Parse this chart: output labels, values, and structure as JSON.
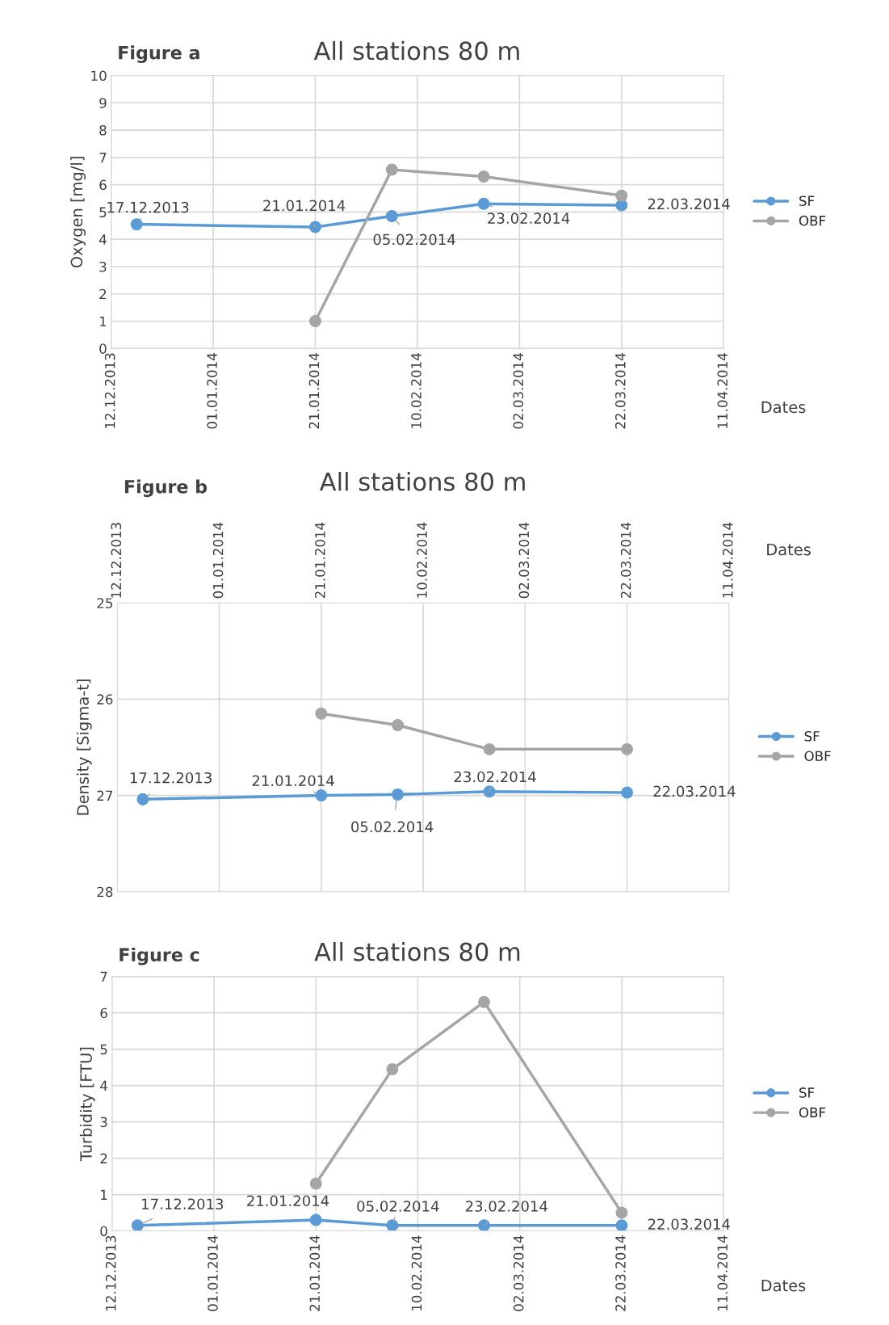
{
  "chart_data": [
    {
      "type": "line",
      "title": "All stations 80 m",
      "subtitle": "Figure a",
      "xlabel": "Dates",
      "ylabel": "Oxygen [mg/l]",
      "xlim": [
        "2013-12-12",
        "2014-04-11"
      ],
      "xticks": [
        {
          "value": "2013-12-12",
          "label": "12.12.2013"
        },
        {
          "value": "2014-01-01",
          "label": "01.01.2014"
        },
        {
          "value": "2014-01-21",
          "label": "21.01.2014"
        },
        {
          "value": "2014-02-10",
          "label": "10.02.2014"
        },
        {
          "value": "2014-03-02",
          "label": "02.03.2014"
        },
        {
          "value": "2014-03-22",
          "label": "22.03.2014"
        },
        {
          "value": "2014-04-11",
          "label": "11.04.2014"
        }
      ],
      "ylim": [
        0,
        10
      ],
      "yticks": [
        0,
        1,
        2,
        3,
        4,
        5,
        6,
        7,
        8,
        9,
        10
      ],
      "grid": true,
      "legend": "right",
      "marker": "circle",
      "line_style": "solid",
      "series": [
        {
          "name": "SF",
          "color": "#5b9bd5",
          "x": [
            "2013-12-17",
            "2014-01-21",
            "2014-02-05",
            "2014-02-23",
            "2014-03-22"
          ],
          "values": [
            4.55,
            4.45,
            4.85,
            5.3,
            5.25
          ]
        },
        {
          "name": "OBF",
          "color": "#a5a5a5",
          "x": [
            "2014-01-21",
            "2014-02-05",
            "2014-02-23",
            "2014-03-22"
          ],
          "values": [
            1.0,
            6.55,
            6.3,
            5.6
          ]
        }
      ],
      "annotations": [
        {
          "text": "17.12.2013",
          "x": "2013-12-17",
          "y": 4.55
        },
        {
          "text": "21.01.2014",
          "x": "2014-01-21",
          "y": 4.45
        },
        {
          "text": "05.02.2014",
          "x": "2014-02-05",
          "y": 4.85
        },
        {
          "text": "23.02.2014",
          "x": "2014-02-23",
          "y": 5.3
        },
        {
          "text": "22.03.2014",
          "x": "2014-03-22",
          "y": 5.25
        }
      ]
    },
    {
      "type": "line",
      "title": "All stations 80 m",
      "subtitle": "Figure b",
      "xlabel": "Dates",
      "ylabel": "Density [Sigma-t]",
      "xlim": [
        "2013-12-12",
        "2014-04-11"
      ],
      "xticks": [
        {
          "value": "2013-12-12",
          "label": "12.12.2013"
        },
        {
          "value": "2014-01-01",
          "label": "01.01.2014"
        },
        {
          "value": "2014-01-21",
          "label": "21.01.2014"
        },
        {
          "value": "2014-02-10",
          "label": "10.02.2014"
        },
        {
          "value": "2014-03-02",
          "label": "02.03.2014"
        },
        {
          "value": "2014-03-22",
          "label": "22.03.2014"
        },
        {
          "value": "2014-04-11",
          "label": "11.04.2014"
        }
      ],
      "ylim": [
        28,
        25
      ],
      "yticks": [
        25,
        26,
        27,
        28
      ],
      "grid": true,
      "legend": "right",
      "marker": "circle",
      "line_style": "solid",
      "series": [
        {
          "name": "SF",
          "color": "#5b9bd5",
          "x": [
            "2013-12-17",
            "2014-01-21",
            "2014-02-05",
            "2014-02-23",
            "2014-03-22"
          ],
          "values": [
            27.04,
            27.0,
            26.99,
            26.96,
            26.97
          ]
        },
        {
          "name": "OBF",
          "color": "#a5a5a5",
          "x": [
            "2014-01-21",
            "2014-02-05",
            "2014-02-23",
            "2014-03-22"
          ],
          "values": [
            26.15,
            26.27,
            26.52,
            26.52
          ]
        }
      ],
      "annotations": [
        {
          "text": "17.12.2013",
          "x": "2013-12-17",
          "y": 27.04
        },
        {
          "text": "21.01.2014",
          "x": "2014-01-21",
          "y": 27.0
        },
        {
          "text": "05.02.2014",
          "x": "2014-02-05",
          "y": 26.99
        },
        {
          "text": "23.02.2014",
          "x": "2014-02-23",
          "y": 26.96
        },
        {
          "text": "22.03.2014",
          "x": "2014-03-22",
          "y": 26.97
        }
      ]
    },
    {
      "type": "line",
      "title": "All stations 80 m",
      "subtitle": "Figure c",
      "xlabel": "Dates",
      "ylabel": "Turbidity [FTU]",
      "xlim": [
        "2013-12-12",
        "2014-04-11"
      ],
      "xticks": [
        {
          "value": "2013-12-12",
          "label": "12.12.2013"
        },
        {
          "value": "2014-01-01",
          "label": "01.01.2014"
        },
        {
          "value": "2014-01-21",
          "label": "21.01.2014"
        },
        {
          "value": "2014-02-10",
          "label": "10.02.2014"
        },
        {
          "value": "2014-03-02",
          "label": "02.03.2014"
        },
        {
          "value": "2014-03-22",
          "label": "22.03.2014"
        },
        {
          "value": "2014-04-11",
          "label": "11.04.2014"
        }
      ],
      "ylim": [
        0,
        7
      ],
      "yticks": [
        0,
        1,
        2,
        3,
        4,
        5,
        6,
        7
      ],
      "grid": true,
      "legend": "right",
      "marker": "circle",
      "line_style": "solid",
      "series": [
        {
          "name": "SF",
          "color": "#5b9bd5",
          "x": [
            "2013-12-17",
            "2014-01-21",
            "2014-02-05",
            "2014-02-23",
            "2014-03-22"
          ],
          "values": [
            0.15,
            0.3,
            0.15,
            0.15,
            0.15
          ]
        },
        {
          "name": "OBF",
          "color": "#a5a5a5",
          "x": [
            "2014-01-21",
            "2014-02-05",
            "2014-02-23",
            "2014-03-22"
          ],
          "values": [
            1.3,
            4.45,
            6.3,
            0.5
          ]
        }
      ],
      "annotations": [
        {
          "text": "17.12.2013",
          "x": "2013-12-17",
          "y": 0.15
        },
        {
          "text": "21.01.2014",
          "x": "2014-01-21",
          "y": 0.3
        },
        {
          "text": "05.02.2014",
          "x": "2014-02-05",
          "y": 0.15
        },
        {
          "text": "23.02.2014",
          "x": "2014-02-23",
          "y": 0.15
        },
        {
          "text": "22.03.2014",
          "x": "2014-03-22",
          "y": 0.15
        }
      ]
    }
  ]
}
